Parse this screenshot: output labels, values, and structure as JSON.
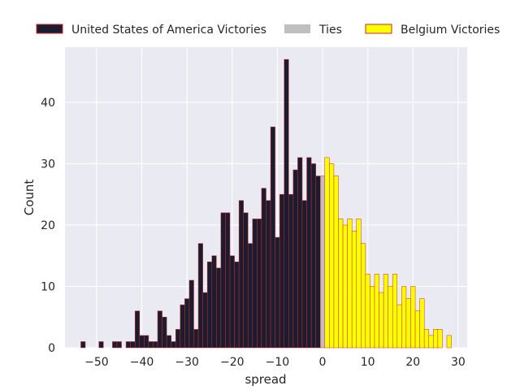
{
  "chart_data": {
    "type": "bar",
    "xlabel": "spread",
    "ylabel": "Count",
    "xlim": [
      -57,
      32
    ],
    "ylim": [
      0,
      49
    ],
    "x_ticks": [
      -50,
      -40,
      -30,
      -20,
      -10,
      0,
      10,
      20,
      30
    ],
    "y_ticks": [
      0,
      10,
      20,
      30,
      40
    ],
    "grid": true,
    "legend_position": "top, above plot",
    "bin_width": 1,
    "colors": {
      "usa": "#1c1c30",
      "ties": "#bfbfbf",
      "belgium": "#ffff00",
      "edge": "#cc2a2a",
      "background": "#eaeaf2"
    },
    "series": [
      {
        "name": "United States of America Victories",
        "bins": [
          {
            "x": -53,
            "count": 1
          },
          {
            "x": -49,
            "count": 1
          },
          {
            "x": -46,
            "count": 1
          },
          {
            "x": -45,
            "count": 1
          },
          {
            "x": -43,
            "count": 1
          },
          {
            "x": -42,
            "count": 1
          },
          {
            "x": -41,
            "count": 6
          },
          {
            "x": -40,
            "count": 2
          },
          {
            "x": -39,
            "count": 2
          },
          {
            "x": -38,
            "count": 1
          },
          {
            "x": -37,
            "count": 1
          },
          {
            "x": -36,
            "count": 6
          },
          {
            "x": -35,
            "count": 5
          },
          {
            "x": -34,
            "count": 2
          },
          {
            "x": -33,
            "count": 1
          },
          {
            "x": -32,
            "count": 3
          },
          {
            "x": -31,
            "count": 7
          },
          {
            "x": -30,
            "count": 8
          },
          {
            "x": -29,
            "count": 11
          },
          {
            "x": -28,
            "count": 3
          },
          {
            "x": -27,
            "count": 17
          },
          {
            "x": -26,
            "count": 9
          },
          {
            "x": -25,
            "count": 14
          },
          {
            "x": -24,
            "count": 15
          },
          {
            "x": -23,
            "count": 13
          },
          {
            "x": -22,
            "count": 22
          },
          {
            "x": -21,
            "count": 22
          },
          {
            "x": -20,
            "count": 15
          },
          {
            "x": -19,
            "count": 14
          },
          {
            "x": -18,
            "count": 24
          },
          {
            "x": -17,
            "count": 22
          },
          {
            "x": -16,
            "count": 17
          },
          {
            "x": -15,
            "count": 21
          },
          {
            "x": -14,
            "count": 21
          },
          {
            "x": -13,
            "count": 26
          },
          {
            "x": -12,
            "count": 24
          },
          {
            "x": -11,
            "count": 36
          },
          {
            "x": -10,
            "count": 18
          },
          {
            "x": -9,
            "count": 25
          },
          {
            "x": -8,
            "count": 47
          },
          {
            "x": -7,
            "count": 25
          },
          {
            "x": -6,
            "count": 29
          },
          {
            "x": -5,
            "count": 31
          },
          {
            "x": -4,
            "count": 24
          },
          {
            "x": -3,
            "count": 31
          },
          {
            "x": -2,
            "count": 30
          },
          {
            "x": -1,
            "count": 28
          }
        ]
      },
      {
        "name": "Ties",
        "bins": [
          {
            "x": 0,
            "count": 28
          }
        ]
      },
      {
        "name": "Belgium Victories",
        "bins": [
          {
            "x": 1,
            "count": 31
          },
          {
            "x": 2,
            "count": 30
          },
          {
            "x": 3,
            "count": 28
          },
          {
            "x": 4,
            "count": 21
          },
          {
            "x": 5,
            "count": 20
          },
          {
            "x": 6,
            "count": 21
          },
          {
            "x": 7,
            "count": 19
          },
          {
            "x": 8,
            "count": 21
          },
          {
            "x": 9,
            "count": 17
          },
          {
            "x": 10,
            "count": 12
          },
          {
            "x": 11,
            "count": 10
          },
          {
            "x": 12,
            "count": 12
          },
          {
            "x": 13,
            "count": 9
          },
          {
            "x": 14,
            "count": 12
          },
          {
            "x": 15,
            "count": 10
          },
          {
            "x": 16,
            "count": 12
          },
          {
            "x": 17,
            "count": 7
          },
          {
            "x": 18,
            "count": 10
          },
          {
            "x": 19,
            "count": 8
          },
          {
            "x": 20,
            "count": 10
          },
          {
            "x": 21,
            "count": 6
          },
          {
            "x": 22,
            "count": 8
          },
          {
            "x": 23,
            "count": 3
          },
          {
            "x": 24,
            "count": 2
          },
          {
            "x": 25,
            "count": 3
          },
          {
            "x": 26,
            "count": 3
          },
          {
            "x": 28,
            "count": 2
          }
        ]
      }
    ]
  }
}
